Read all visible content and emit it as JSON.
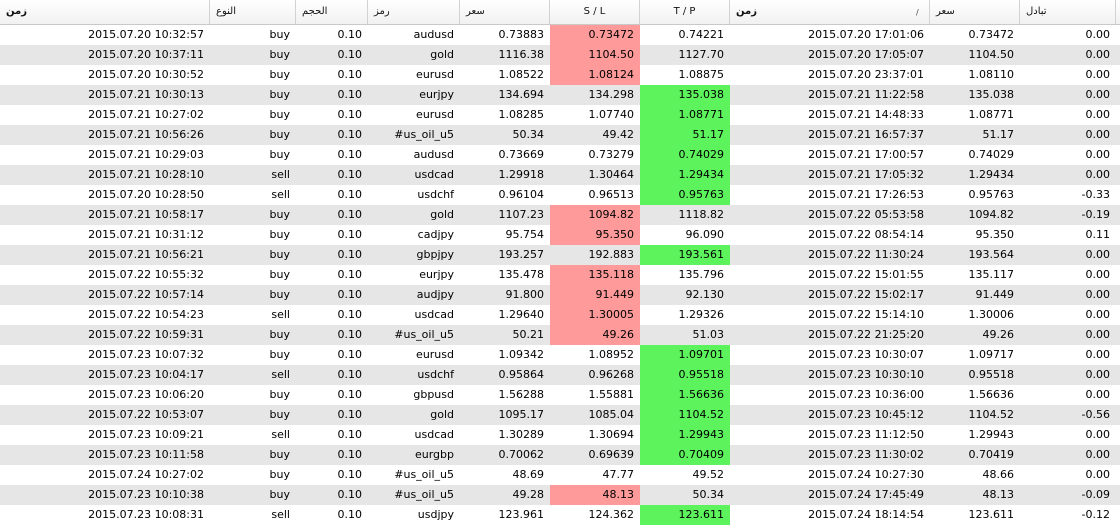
{
  "columns": {
    "time": "زمن",
    "type": "النوع",
    "volume": "الحجم",
    "symbol": "رمز",
    "price": "سعر",
    "sl": "S / L",
    "tp": "T / P",
    "close_time": "زمن",
    "close_price": "سعر",
    "swap": "تبادل"
  },
  "sort_indicator": "/",
  "colors": {
    "sl_hit": "#ff9a9a",
    "tp_hit": "#5cf35c",
    "alt_row": "#e6e6e6"
  },
  "rows": [
    {
      "time": "2015.07.20 10:32:57",
      "type": "buy",
      "volume": "0.10",
      "symbol": "audusd",
      "price": "0.73883",
      "sl": "0.73472",
      "tp": "0.74221",
      "close_time": "2015.07.20 17:01:06",
      "close_price": "0.73472",
      "swap": "0.00",
      "hit": "sl"
    },
    {
      "time": "2015.07.20 10:37:11",
      "type": "buy",
      "volume": "0.10",
      "symbol": "gold",
      "price": "1116.38",
      "sl": "1104.50",
      "tp": "1127.70",
      "close_time": "2015.07.20 17:05:07",
      "close_price": "1104.50",
      "swap": "0.00",
      "hit": "sl"
    },
    {
      "time": "2015.07.20 10:30:52",
      "type": "buy",
      "volume": "0.10",
      "symbol": "eurusd",
      "price": "1.08522",
      "sl": "1.08124",
      "tp": "1.08875",
      "close_time": "2015.07.20 23:37:01",
      "close_price": "1.08110",
      "swap": "0.00",
      "hit": "sl"
    },
    {
      "time": "2015.07.21 10:30:13",
      "type": "buy",
      "volume": "0.10",
      "symbol": "eurjpy",
      "price": "134.694",
      "sl": "134.298",
      "tp": "135.038",
      "close_time": "2015.07.21 11:22:58",
      "close_price": "135.038",
      "swap": "0.00",
      "hit": "tp"
    },
    {
      "time": "2015.07.21 10:27:02",
      "type": "buy",
      "volume": "0.10",
      "symbol": "eurusd",
      "price": "1.08285",
      "sl": "1.07740",
      "tp": "1.08771",
      "close_time": "2015.07.21 14:48:33",
      "close_price": "1.08771",
      "swap": "0.00",
      "hit": "tp"
    },
    {
      "time": "2015.07.21 10:56:26",
      "type": "buy",
      "volume": "0.10",
      "symbol": "#us_oil_u5",
      "price": "50.34",
      "sl": "49.42",
      "tp": "51.17",
      "close_time": "2015.07.21 16:57:37",
      "close_price": "51.17",
      "swap": "0.00",
      "hit": "tp"
    },
    {
      "time": "2015.07.21 10:29:03",
      "type": "buy",
      "volume": "0.10",
      "symbol": "audusd",
      "price": "0.73669",
      "sl": "0.73279",
      "tp": "0.74029",
      "close_time": "2015.07.21 17:00:57",
      "close_price": "0.74029",
      "swap": "0.00",
      "hit": "tp"
    },
    {
      "time": "2015.07.21 10:28:10",
      "type": "sell",
      "volume": "0.10",
      "symbol": "usdcad",
      "price": "1.29918",
      "sl": "1.30464",
      "tp": "1.29434",
      "close_time": "2015.07.21 17:05:32",
      "close_price": "1.29434",
      "swap": "0.00",
      "hit": "tp"
    },
    {
      "time": "2015.07.20 10:28:50",
      "type": "sell",
      "volume": "0.10",
      "symbol": "usdchf",
      "price": "0.96104",
      "sl": "0.96513",
      "tp": "0.95763",
      "close_time": "2015.07.21 17:26:53",
      "close_price": "0.95763",
      "swap": "-0.33",
      "hit": "tp"
    },
    {
      "time": "2015.07.21 10:58:17",
      "type": "buy",
      "volume": "0.10",
      "symbol": "gold",
      "price": "1107.23",
      "sl": "1094.82",
      "tp": "1118.82",
      "close_time": "2015.07.22 05:53:58",
      "close_price": "1094.82",
      "swap": "-0.19",
      "hit": "sl"
    },
    {
      "time": "2015.07.21 10:31:12",
      "type": "buy",
      "volume": "0.10",
      "symbol": "cadjpy",
      "price": "95.754",
      "sl": "95.350",
      "tp": "96.090",
      "close_time": "2015.07.22 08:54:14",
      "close_price": "95.350",
      "swap": "0.11",
      "hit": "sl"
    },
    {
      "time": "2015.07.21 10:56:21",
      "type": "buy",
      "volume": "0.10",
      "symbol": "gbpjpy",
      "price": "193.257",
      "sl": "192.883",
      "tp": "193.561",
      "close_time": "2015.07.22 11:30:24",
      "close_price": "193.564",
      "swap": "0.00",
      "hit": "tp"
    },
    {
      "time": "2015.07.22 10:55:32",
      "type": "buy",
      "volume": "0.10",
      "symbol": "eurjpy",
      "price": "135.478",
      "sl": "135.118",
      "tp": "135.796",
      "close_time": "2015.07.22 15:01:55",
      "close_price": "135.117",
      "swap": "0.00",
      "hit": "sl"
    },
    {
      "time": "2015.07.22 10:57:14",
      "type": "buy",
      "volume": "0.10",
      "symbol": "audjpy",
      "price": "91.800",
      "sl": "91.449",
      "tp": "92.130",
      "close_time": "2015.07.22 15:02:17",
      "close_price": "91.449",
      "swap": "0.00",
      "hit": "sl"
    },
    {
      "time": "2015.07.22 10:54:23",
      "type": "sell",
      "volume": "0.10",
      "symbol": "usdcad",
      "price": "1.29640",
      "sl": "1.30005",
      "tp": "1.29326",
      "close_time": "2015.07.22 15:14:10",
      "close_price": "1.30006",
      "swap": "0.00",
      "hit": "sl"
    },
    {
      "time": "2015.07.22 10:59:31",
      "type": "buy",
      "volume": "0.10",
      "symbol": "#us_oil_u5",
      "price": "50.21",
      "sl": "49.26",
      "tp": "51.03",
      "close_time": "2015.07.22 21:25:20",
      "close_price": "49.26",
      "swap": "0.00",
      "hit": "sl"
    },
    {
      "time": "2015.07.23 10:07:32",
      "type": "buy",
      "volume": "0.10",
      "symbol": "eurusd",
      "price": "1.09342",
      "sl": "1.08952",
      "tp": "1.09701",
      "close_time": "2015.07.23 10:30:07",
      "close_price": "1.09717",
      "swap": "0.00",
      "hit": "tp"
    },
    {
      "time": "2015.07.23 10:04:17",
      "type": "sell",
      "volume": "0.10",
      "symbol": "usdchf",
      "price": "0.95864",
      "sl": "0.96268",
      "tp": "0.95518",
      "close_time": "2015.07.23 10:30:10",
      "close_price": "0.95518",
      "swap": "0.00",
      "hit": "tp"
    },
    {
      "time": "2015.07.23 10:06:20",
      "type": "buy",
      "volume": "0.10",
      "symbol": "gbpusd",
      "price": "1.56288",
      "sl": "1.55881",
      "tp": "1.56636",
      "close_time": "2015.07.23 10:36:00",
      "close_price": "1.56636",
      "swap": "0.00",
      "hit": "tp"
    },
    {
      "time": "2015.07.22 10:53:07",
      "type": "buy",
      "volume": "0.10",
      "symbol": "gold",
      "price": "1095.17",
      "sl": "1085.04",
      "tp": "1104.52",
      "close_time": "2015.07.23 10:45:12",
      "close_price": "1104.52",
      "swap": "-0.56",
      "hit": "tp"
    },
    {
      "time": "2015.07.23 10:09:21",
      "type": "sell",
      "volume": "0.10",
      "symbol": "usdcad",
      "price": "1.30289",
      "sl": "1.30694",
      "tp": "1.29943",
      "close_time": "2015.07.23 11:12:50",
      "close_price": "1.29943",
      "swap": "0.00",
      "hit": "tp"
    },
    {
      "time": "2015.07.23 10:11:58",
      "type": "buy",
      "volume": "0.10",
      "symbol": "eurgbp",
      "price": "0.70062",
      "sl": "0.69639",
      "tp": "0.70409",
      "close_time": "2015.07.23 11:30:02",
      "close_price": "0.70419",
      "swap": "0.00",
      "hit": "tp"
    },
    {
      "time": "2015.07.24 10:27:02",
      "type": "buy",
      "volume": "0.10",
      "symbol": "#us_oil_u5",
      "price": "48.69",
      "sl": "47.77",
      "tp": "49.52",
      "close_time": "2015.07.24 10:27:30",
      "close_price": "48.66",
      "swap": "0.00",
      "hit": ""
    },
    {
      "time": "2015.07.23 10:10:38",
      "type": "buy",
      "volume": "0.10",
      "symbol": "#us_oil_u5",
      "price": "49.28",
      "sl": "48.13",
      "tp": "50.34",
      "close_time": "2015.07.24 17:45:49",
      "close_price": "48.13",
      "swap": "-0.09",
      "hit": "sl"
    },
    {
      "time": "2015.07.23 10:08:31",
      "type": "sell",
      "volume": "0.10",
      "symbol": "usdjpy",
      "price": "123.961",
      "sl": "124.362",
      "tp": "123.611",
      "close_time": "2015.07.24 18:14:54",
      "close_price": "123.611",
      "swap": "-0.12",
      "hit": "tp"
    }
  ]
}
